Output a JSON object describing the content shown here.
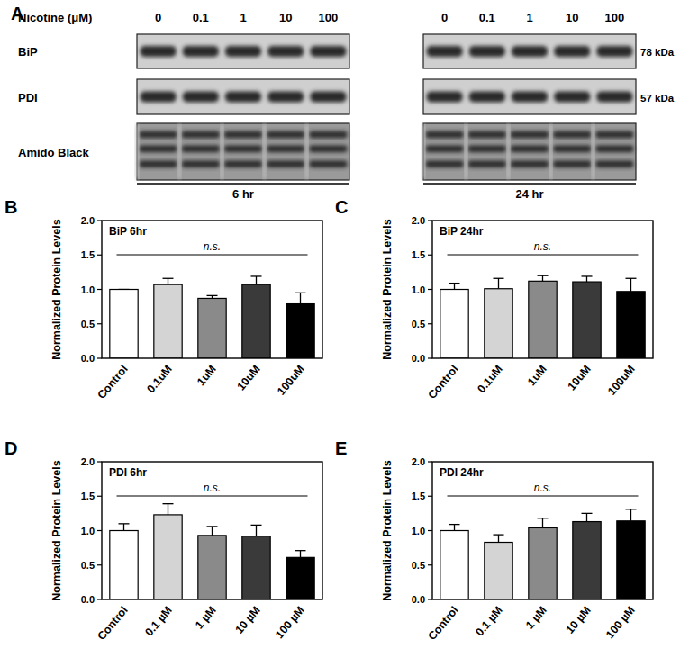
{
  "blot": {
    "panel": "A",
    "treatment_label": "Nicotine (μM)",
    "doses": [
      "0",
      "0.1",
      "1",
      "10",
      "100"
    ],
    "rows": [
      "BiP",
      "PDI",
      "Amido Black"
    ],
    "sizes": [
      "78 kDa",
      "57 kDa"
    ],
    "timepoints": [
      "6 hr",
      "24 hr"
    ]
  },
  "chart_data": [
    {
      "type": "bar",
      "panel": "B",
      "title": "BiP 6hr",
      "y_label": "Normalized Protein Levels",
      "annotation": "n.s.",
      "categories": [
        "Control",
        "0.1uM",
        "1uM",
        "10uM",
        "100uM"
      ],
      "values": [
        1.0,
        1.07,
        0.87,
        1.07,
        0.79
      ],
      "errors": [
        0,
        0.09,
        0.04,
        0.12,
        0.16
      ],
      "colors": [
        "#ffffff",
        "#d4d4d4",
        "#8a8a8a",
        "#3a3a3a",
        "#000000"
      ],
      "ylim": [
        0,
        2
      ],
      "yticks": [
        {
          "value": 0,
          "label": "0.0"
        },
        {
          "value": 0.5,
          "label": "0.5"
        },
        {
          "value": 1,
          "label": "1.0"
        },
        {
          "value": 1.5,
          "label": "1.5"
        },
        {
          "value": 2,
          "label": "2.0"
        }
      ]
    },
    {
      "type": "bar",
      "panel": "C",
      "title": "BiP 24hr",
      "y_label": "Normalized Protein Levels",
      "annotation": "n.s.",
      "categories": [
        "Control",
        "0.1uM",
        "1uM",
        "10uM",
        "100uM"
      ],
      "values": [
        1.0,
        1.01,
        1.12,
        1.11,
        0.97
      ],
      "errors": [
        0.09,
        0.15,
        0.08,
        0.08,
        0.19
      ],
      "colors": [
        "#ffffff",
        "#d4d4d4",
        "#8a8a8a",
        "#3a3a3a",
        "#000000"
      ],
      "ylim": [
        0,
        2
      ],
      "yticks": [
        {
          "value": 0,
          "label": "0.0"
        },
        {
          "value": 0.5,
          "label": "0.5"
        },
        {
          "value": 1,
          "label": "1.0"
        },
        {
          "value": 1.5,
          "label": "1.5"
        },
        {
          "value": 2,
          "label": "2.0"
        }
      ]
    },
    {
      "type": "bar",
      "panel": "D",
      "title": "PDI 6hr",
      "y_label": "Normalized Protein Levels",
      "annotation": "n.s.",
      "categories": [
        "Control",
        "0.1 µM",
        "1 µM",
        "10 µM",
        "100 µM"
      ],
      "values": [
        1.0,
        1.23,
        0.93,
        0.92,
        0.61
      ],
      "errors": [
        0.1,
        0.16,
        0.13,
        0.16,
        0.1
      ],
      "colors": [
        "#ffffff",
        "#d4d4d4",
        "#8a8a8a",
        "#3a3a3a",
        "#000000"
      ],
      "ylim": [
        0,
        2
      ],
      "yticks": [
        {
          "value": 0,
          "label": "0.0"
        },
        {
          "value": 0.5,
          "label": "0.5"
        },
        {
          "value": 1,
          "label": "1.0"
        },
        {
          "value": 1.5,
          "label": "1.5"
        },
        {
          "value": 2,
          "label": "2.0"
        }
      ]
    },
    {
      "type": "bar",
      "panel": "E",
      "title": "PDI 24hr",
      "y_label": "Normalized Protein Levels",
      "annotation": "n.s.",
      "categories": [
        "Control",
        "0.1 µM",
        "1 µM",
        "10 µM",
        "100 µM"
      ],
      "values": [
        1.0,
        0.83,
        1.04,
        1.13,
        1.14
      ],
      "errors": [
        0.09,
        0.11,
        0.14,
        0.12,
        0.17
      ],
      "colors": [
        "#ffffff",
        "#d4d4d4",
        "#8a8a8a",
        "#3a3a3a",
        "#000000"
      ],
      "ylim": [
        0,
        2
      ],
      "yticks": [
        {
          "value": 0,
          "label": "0.0"
        },
        {
          "value": 0.5,
          "label": "0.5"
        },
        {
          "value": 1,
          "label": "1.0"
        },
        {
          "value": 1.5,
          "label": "1.5"
        },
        {
          "value": 2,
          "label": "2.0"
        }
      ]
    }
  ]
}
